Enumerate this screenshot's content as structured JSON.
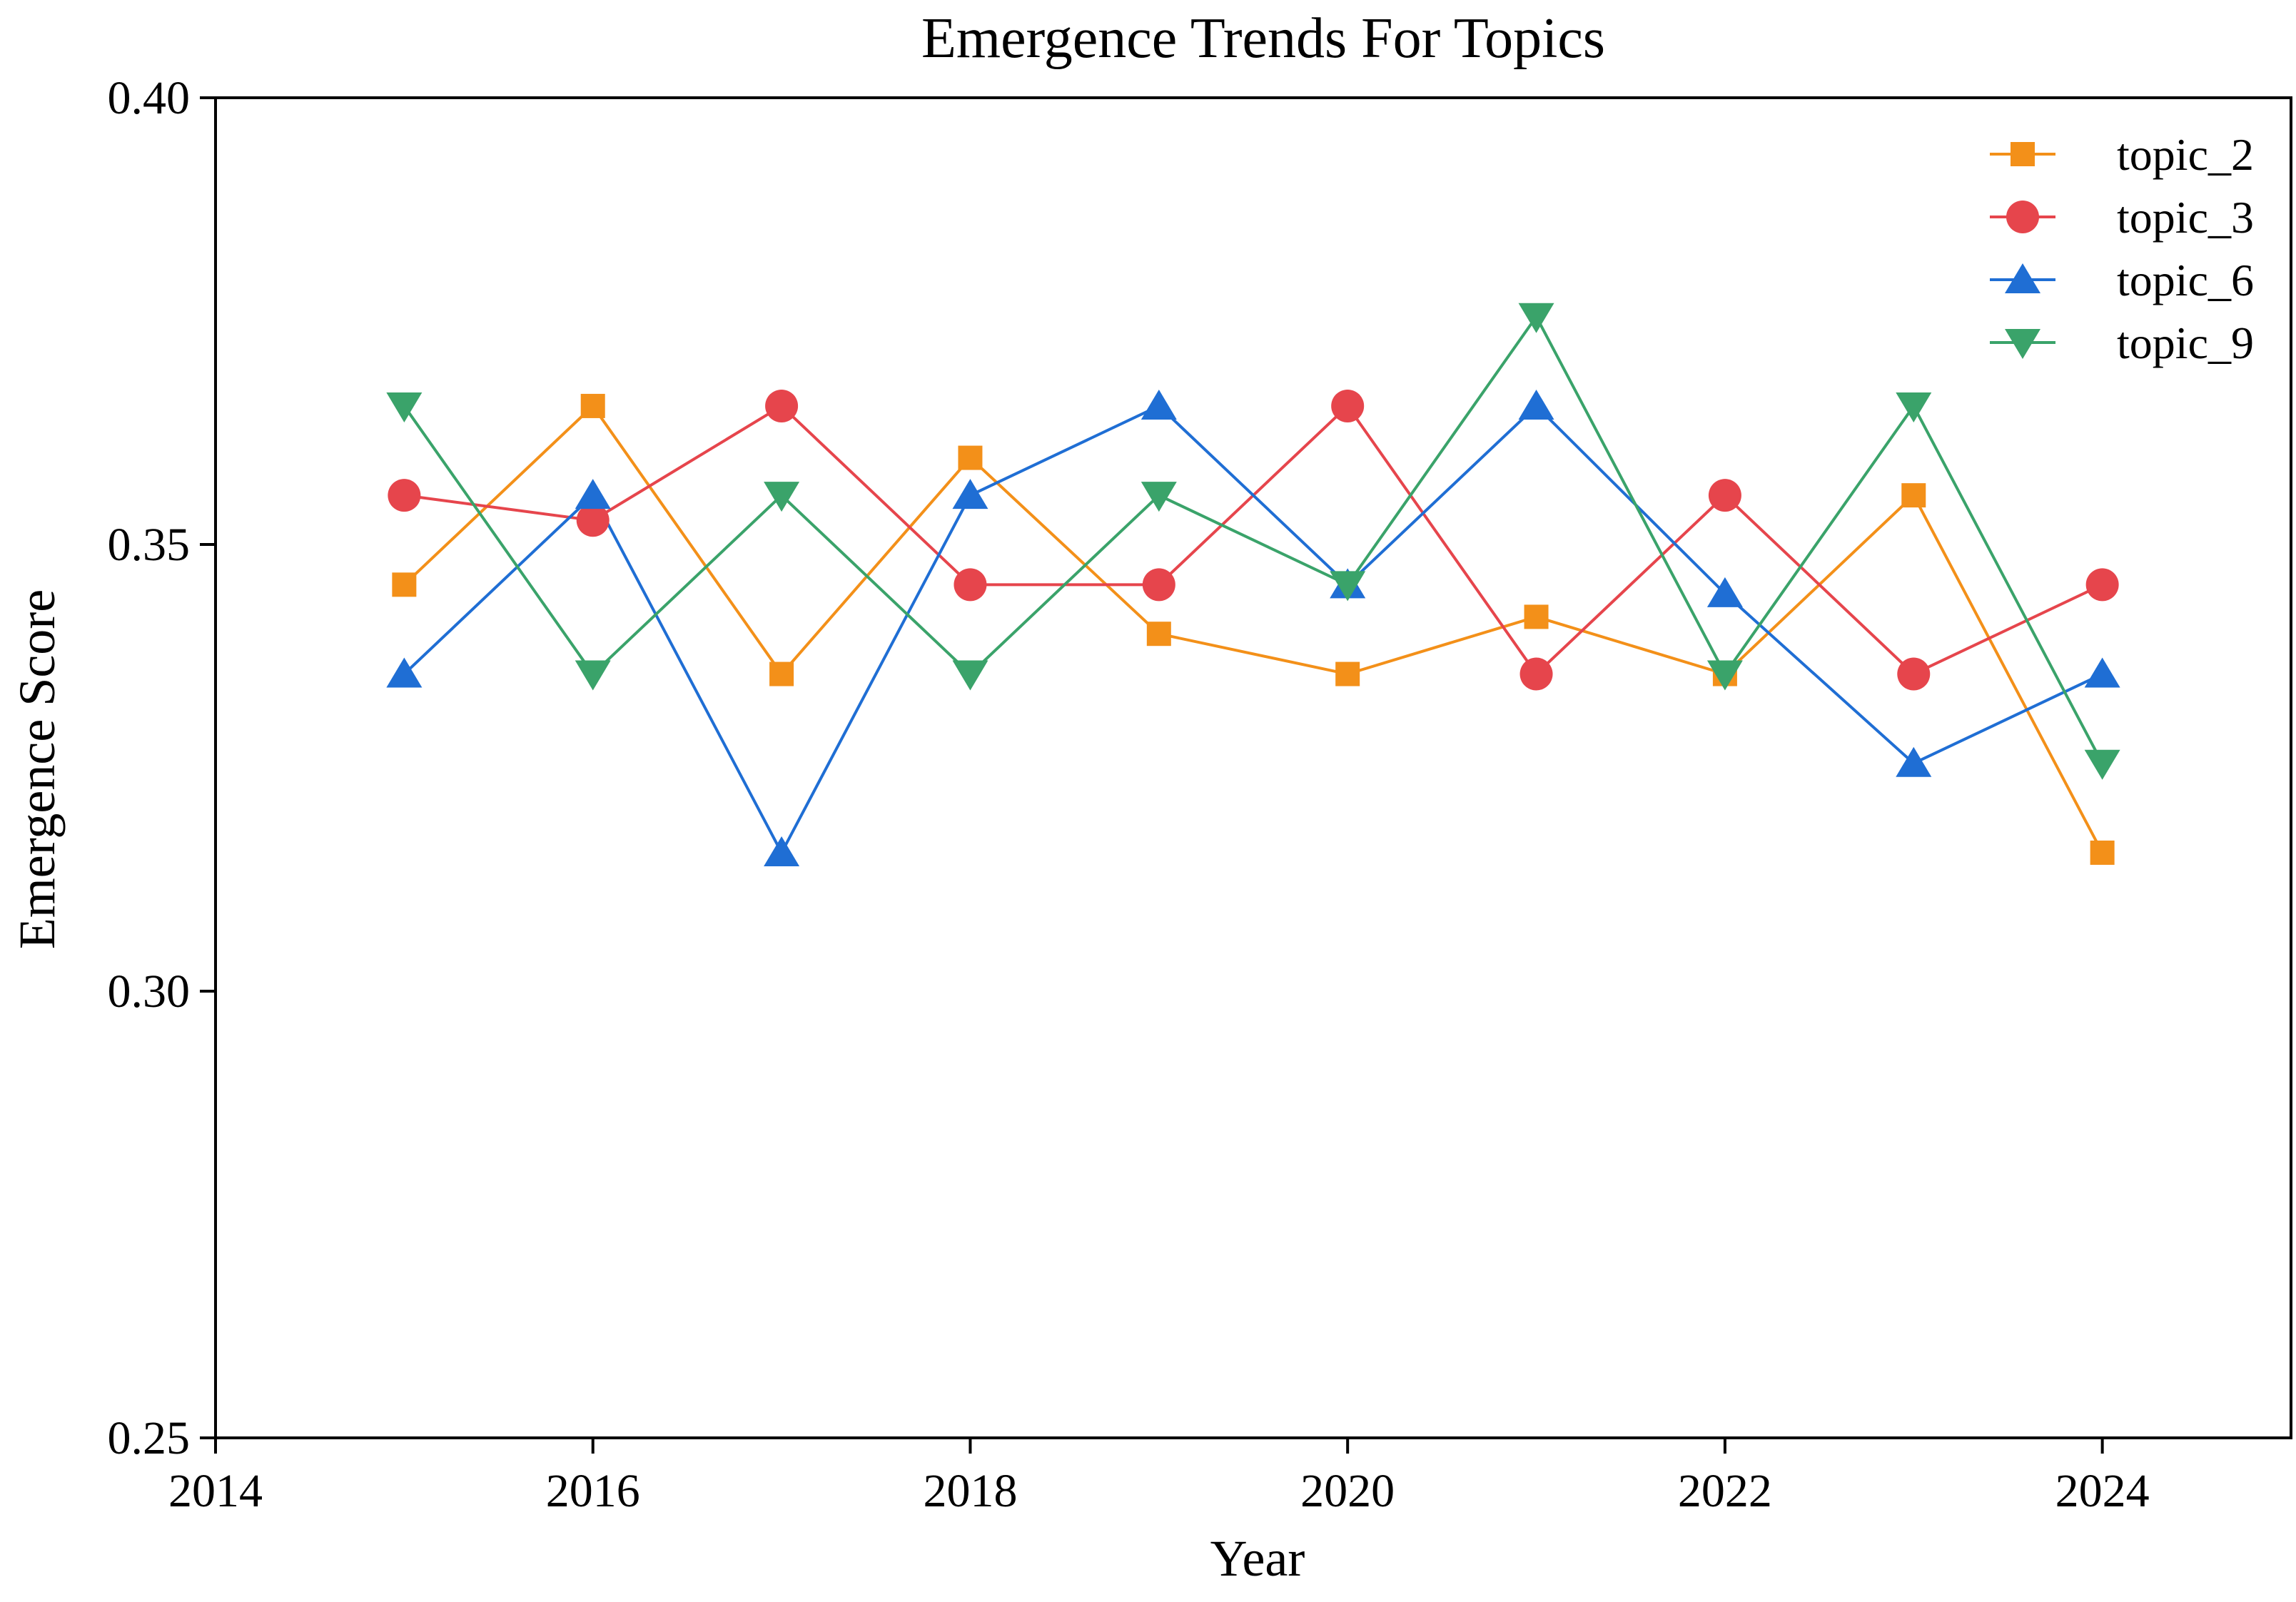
{
  "chart_data": {
    "type": "line",
    "title": "Emergence Trends For Topics",
    "xlabel": "Year",
    "ylabel": "Emergence Score",
    "xlim": [
      2014,
      2025
    ],
    "ylim": [
      0.25,
      0.4
    ],
    "xticks": [
      2014,
      2016,
      2018,
      2020,
      2022,
      2024
    ],
    "xtick_labels": [
      "2014",
      "2016",
      "2018",
      "2020",
      "2022",
      "2024"
    ],
    "yticks": [
      0.25,
      0.3,
      0.35,
      0.4
    ],
    "ytick_labels": [
      "0.25",
      "0.30",
      "0.35",
      "0.40"
    ],
    "grid": false,
    "legend_position": "top-right",
    "x": [
      2015,
      2016,
      2017,
      2018,
      2019,
      2020,
      2021,
      2022,
      2023,
      2024
    ],
    "series": [
      {
        "name": "topic_2",
        "color": "#f39019",
        "marker": "square",
        "values": [
          0.3455,
          0.3655,
          0.3355,
          0.3597,
          0.34,
          0.3355,
          0.3419,
          0.3355,
          0.3555,
          0.3155
        ]
      },
      {
        "name": "topic_3",
        "color": "#e6454c",
        "marker": "circle",
        "values": [
          0.3555,
          0.3527,
          0.3655,
          0.3455,
          0.3455,
          0.3655,
          0.3355,
          0.3555,
          0.3355,
          0.3455
        ]
      },
      {
        "name": "topic_6",
        "color": "#1f6ed4",
        "marker": "triangle-up",
        "values": [
          0.3355,
          0.3555,
          0.3155,
          0.3555,
          0.3655,
          0.3455,
          0.3655,
          0.3445,
          0.3255,
          0.3355
        ]
      },
      {
        "name": "topic_9",
        "color": "#3aa36a",
        "marker": "triangle-down",
        "values": [
          0.3655,
          0.3355,
          0.3555,
          0.3355,
          0.3555,
          0.3455,
          0.3755,
          0.3355,
          0.3655,
          0.3255
        ]
      }
    ]
  }
}
